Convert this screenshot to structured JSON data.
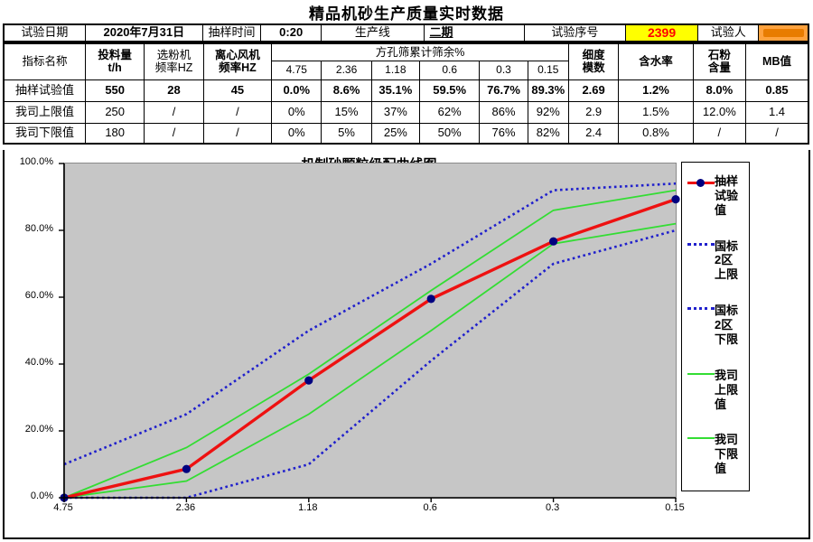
{
  "page_title": "精品机砂生产质量实时数据",
  "info": {
    "date_label": "试验日期",
    "date_value": "2020年7月31日",
    "time_label": "抽样时间",
    "time_value": "0:20",
    "line_label": "生产线",
    "line_value": "二期",
    "serial_label": "试验序号",
    "serial_value": "2399",
    "tester_label": "试验人",
    "tester_value": ""
  },
  "table": {
    "headers": {
      "name": "指标名称",
      "feed1": "投料量",
      "feed2": "t/h",
      "classifier1": "选粉机",
      "classifier2": "频率HZ",
      "fan1": "离心风机",
      "fan2": "频率HZ",
      "sieve_group": "方孔筛累计筛余%",
      "sieves": [
        "4.75",
        "2.36",
        "1.18",
        "0.6",
        "0.3",
        "0.15"
      ],
      "fineness1": "细度",
      "fineness2": "模数",
      "moisture": "含水率",
      "stone1": "石粉",
      "stone2": "含量",
      "mb": "MB值"
    },
    "rows": [
      {
        "name": "抽样试验值",
        "feed": "550",
        "classifier": "28",
        "fan": "45",
        "sieves": [
          "0.0%",
          "8.6%",
          "35.1%",
          "59.5%",
          "76.7%",
          "89.3%"
        ],
        "fineness": "2.69",
        "moisture": "1.2%",
        "stone": "8.0%",
        "mb": "0.85"
      },
      {
        "name": "我司上限值",
        "feed": "250",
        "classifier": "/",
        "fan": "/",
        "sieves": [
          "0%",
          "15%",
          "37%",
          "62%",
          "86%",
          "92%"
        ],
        "fineness": "2.9",
        "moisture": "1.5%",
        "stone": "12.0%",
        "mb": "1.4"
      },
      {
        "name": "我司下限值",
        "feed": "180",
        "classifier": "/",
        "fan": "/",
        "sieves": [
          "0%",
          "5%",
          "25%",
          "50%",
          "76%",
          "82%"
        ],
        "fineness": "2.4",
        "moisture": "0.8%",
        "stone": "/",
        "mb": "/"
      }
    ]
  },
  "chart_data": {
    "type": "line",
    "title": "机制砂颗粒级配曲线图",
    "categories": [
      "4.75",
      "2.36",
      "1.18",
      "0.6",
      "0.3",
      "0.15"
    ],
    "y_ticks": [
      "0.0%",
      "20.0%",
      "40.0%",
      "60.0%",
      "80.0%",
      "100.0%"
    ],
    "ylim": [
      0,
      100
    ],
    "grid": false,
    "legend_position": "right",
    "plot_bg": "#c6c6c6",
    "series": [
      {
        "name": "抽样试验值",
        "values": [
          0,
          8.6,
          35.1,
          59.5,
          76.7,
          89.3
        ],
        "color": "#ee1111",
        "style": "solid-marker",
        "marker_color": "#000080"
      },
      {
        "name": "国标2区上限",
        "values": [
          10,
          25,
          50,
          70,
          92,
          94
        ],
        "color": "#2020cc",
        "style": "dotted"
      },
      {
        "name": "国标2区下限",
        "values": [
          0,
          0,
          10,
          41,
          70,
          80
        ],
        "color": "#2020cc",
        "style": "dotted"
      },
      {
        "name": "我司上限值",
        "values": [
          0,
          15,
          37,
          62,
          86,
          92
        ],
        "color": "#33dd33",
        "style": "solid"
      },
      {
        "name": "我司下限值",
        "values": [
          0,
          5,
          25,
          50,
          76,
          82
        ],
        "color": "#33dd33",
        "style": "solid"
      }
    ]
  },
  "colors": {
    "serial_bg": "#ffff00",
    "serial_text": "#ff0000",
    "tester_bg": "#ffa23e",
    "tester_redact": "#e87c00",
    "plot_bg": "#c6c6c6"
  }
}
